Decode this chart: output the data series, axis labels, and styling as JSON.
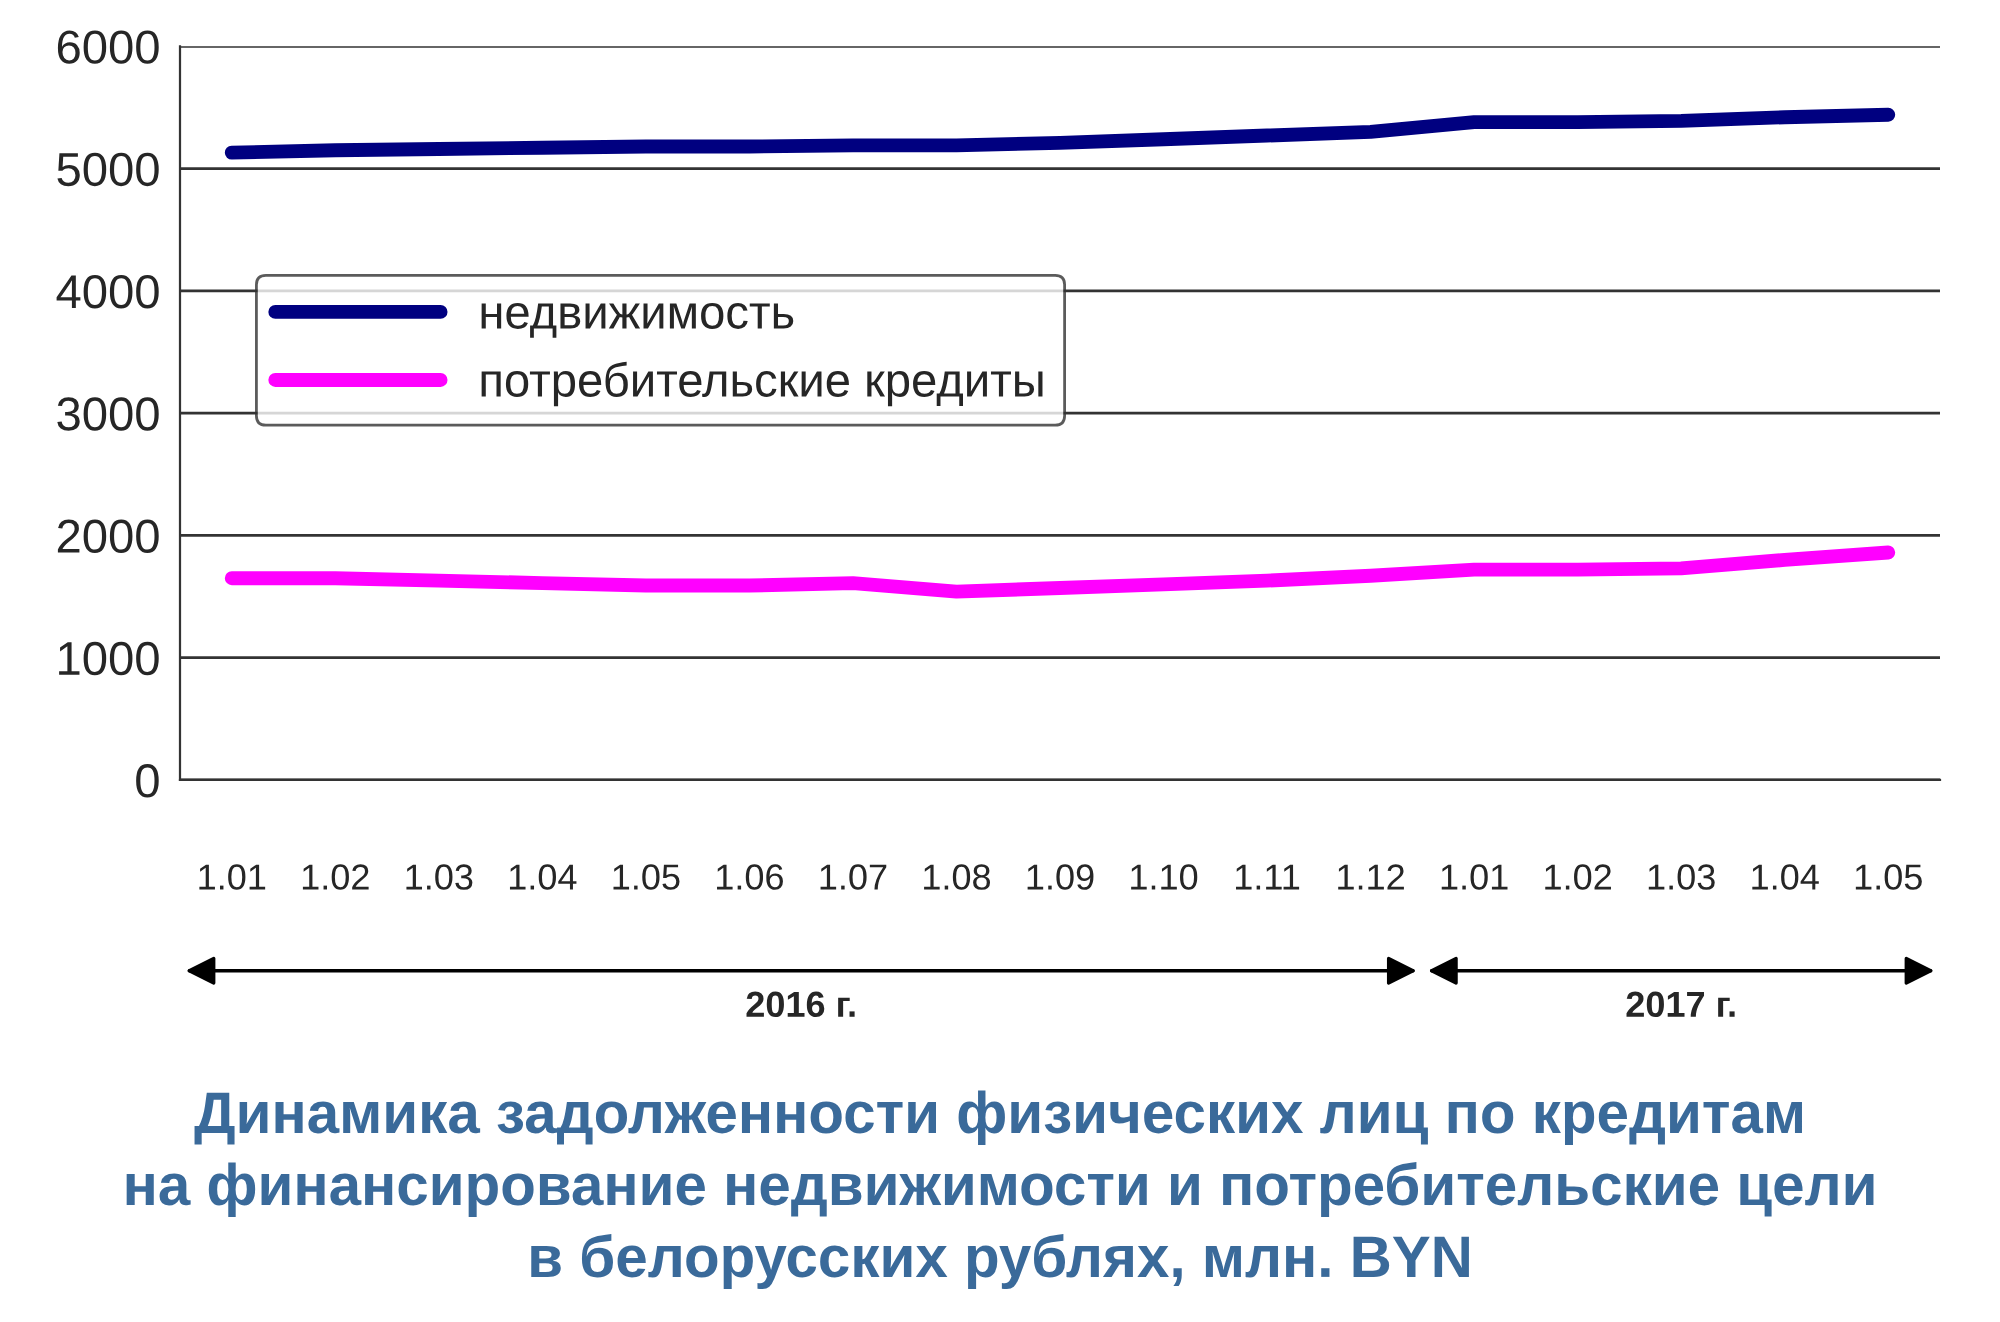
{
  "chart_data": {
    "type": "line",
    "title": "Динамика задолженности физических лиц по кредитам\nна финансирование недвижимости и потребительские цели\nв белорусских рублях, млн. BYN",
    "categories": [
      "1.01",
      "1.02",
      "1.03",
      "1.04",
      "1.05",
      "1.06",
      "1.07",
      "1.08",
      "1.09",
      "1.10",
      "1.11",
      "1.12",
      "1.01",
      "1.02",
      "1.03",
      "1.04",
      "1.05"
    ],
    "series": [
      {
        "name": "недвижимость",
        "color": "#000080",
        "values": [
          5130,
          5150,
          5160,
          5170,
          5180,
          5180,
          5190,
          5190,
          5210,
          5240,
          5270,
          5300,
          5380,
          5380,
          5390,
          5420,
          5440
        ]
      },
      {
        "name": "потребительские кредиты",
        "color": "#ff00ff",
        "values": [
          1650,
          1650,
          1630,
          1610,
          1590,
          1590,
          1610,
          1540,
          1570,
          1600,
          1630,
          1670,
          1720,
          1720,
          1730,
          1800,
          1860
        ]
      }
    ],
    "ylim": [
      0,
      6000
    ],
    "yticks": [
      0,
      1000,
      2000,
      3000,
      4000,
      5000,
      6000
    ],
    "grid": "y",
    "legend": "top left",
    "marker": "none",
    "line_style": "solid",
    "annotations": [
      "2016 г.",
      "2017 г."
    ]
  }
}
